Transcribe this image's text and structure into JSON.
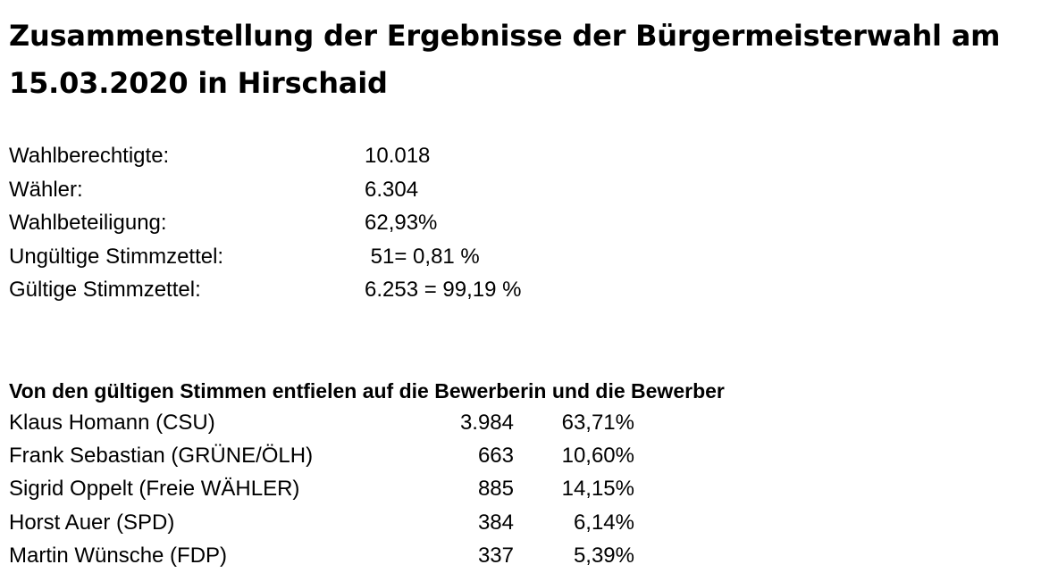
{
  "document": {
    "title": "Zusammenstellung der Ergebnisse der Bürgermeisterwahl am 15.03.2020 in Hirschaid"
  },
  "summary": [
    {
      "label": "Wahlberechtigte:",
      "value": "10.018"
    },
    {
      "label": "Wähler:",
      "value": "6.304"
    },
    {
      "label": "Wahlbeteiligung:",
      "value": "62,93%"
    },
    {
      "label": "Ungültige Stimmzettel:",
      "value": " 51= 0,81 %"
    },
    {
      "label": "Gültige Stimmzettel:",
      "value": "6.253 = 99,19 %"
    }
  ],
  "results": {
    "heading": "Von den gültigen Stimmen entfielen auf die Bewerberin und die Bewerber",
    "candidates": [
      {
        "name": "Klaus Homann (CSU)",
        "votes": "3.984",
        "percent": "63,71%"
      },
      {
        "name": "Frank Sebastian (GRÜNE/ÖLH)",
        "votes": "663",
        "percent": "10,60%"
      },
      {
        "name": "Sigrid Oppelt (Freie WÄHLER)",
        "votes": "885",
        "percent": "14,15%"
      },
      {
        "name": "Horst Auer (SPD)",
        "votes": "384",
        "percent": "6,14%"
      },
      {
        "name": "Martin Wünsche (FDP)",
        "votes": "337",
        "percent": "5,39%"
      }
    ]
  }
}
